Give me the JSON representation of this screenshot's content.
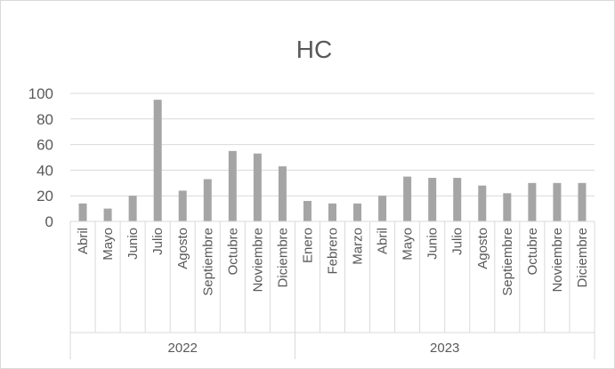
{
  "chart_data": {
    "type": "bar",
    "title": "HC",
    "xlabel": "",
    "ylabel": "",
    "ylim": [
      0,
      100
    ],
    "yticks": [
      0,
      20,
      40,
      60,
      80,
      100
    ],
    "grid": true,
    "bar_color": "#a5a5a5",
    "groups": [
      {
        "label": "2022",
        "categories": [
          "Abril",
          "Mayo",
          "Junio",
          "Julio",
          "Agosto",
          "Septiembre",
          "Octubre",
          "Noviembre",
          "Diciembre"
        ]
      },
      {
        "label": "2023",
        "categories": [
          "Enero",
          "Febrero",
          "Marzo",
          "Abril",
          "Mayo",
          "Junio",
          "Julio",
          "Agosto",
          "Septiembre",
          "Octubre",
          "Noviembre",
          "Diciembre"
        ]
      }
    ],
    "categories": [
      "Abril",
      "Mayo",
      "Junio",
      "Julio",
      "Agosto",
      "Septiembre",
      "Octubre",
      "Noviembre",
      "Diciembre",
      "Enero",
      "Febrero",
      "Marzo",
      "Abril",
      "Mayo",
      "Junio",
      "Julio",
      "Agosto",
      "Septiembre",
      "Octubre",
      "Noviembre",
      "Diciembre"
    ],
    "values": [
      14,
      10,
      20,
      95,
      24,
      33,
      55,
      53,
      43,
      16,
      14,
      14,
      20,
      35,
      34,
      34,
      28,
      22,
      30,
      30,
      30
    ]
  }
}
